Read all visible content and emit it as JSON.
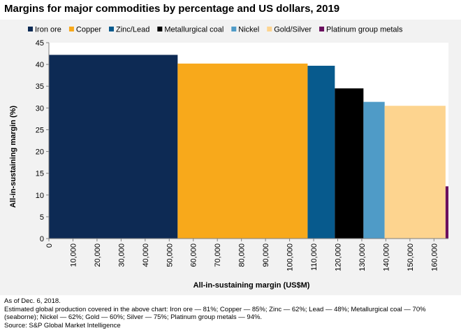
{
  "chart_data": {
    "type": "bar",
    "title": "Margins for major commodities by percentage and US dollars, 2019",
    "xlabel": "All-in-sustaining margin (US$M)",
    "ylabel": "All-in-sustaining margin (%)",
    "xlim": [
      0,
      166000
    ],
    "ylim": [
      0,
      45
    ],
    "x_ticks": [
      "0",
      "10,000",
      "20,000",
      "30,000",
      "40,000",
      "50,000",
      "60,000",
      "70,000",
      "80,000",
      "90,000",
      "100,000",
      "110,000",
      "120,000",
      "130,000",
      "140,000",
      "150,000",
      "160,000"
    ],
    "y_ticks": [
      "0",
      "5",
      "10",
      "15",
      "20",
      "25",
      "30",
      "35",
      "40",
      "45"
    ],
    "legend_position": "top",
    "series": [
      {
        "name": "Iron ore",
        "color": "#0d2a54",
        "x_start": 0,
        "x_end": 53500,
        "value": 42.2
      },
      {
        "name": "Copper",
        "color": "#f8a91b",
        "x_start": 53500,
        "x_end": 107500,
        "value": 40.2
      },
      {
        "name": "Zinc/Lead",
        "color": "#075a8d",
        "x_start": 107500,
        "x_end": 118800,
        "value": 39.7
      },
      {
        "name": "Metallurgical coal",
        "color": "#000000",
        "x_start": 118800,
        "x_end": 130700,
        "value": 34.5
      },
      {
        "name": "Nickel",
        "color": "#4f9bc7",
        "x_start": 130700,
        "x_end": 139500,
        "value": 31.4
      },
      {
        "name": "Gold/Silver",
        "color": "#fdd48f",
        "x_start": 139500,
        "x_end": 164800,
        "value": 30.5
      },
      {
        "name": "Platinum group metals",
        "color": "#6a0f5e",
        "x_start": 164800,
        "x_end": 166000,
        "value": 12.0
      }
    ]
  },
  "footer": {
    "date_note": "As of Dec. 6, 2018.",
    "coverage_note": "Estimated global production covered in the above chart: Iron ore — 81%; Copper — 85%; Zinc — 62%; Lead — 48%; Metallurgical coal — 70% (seaborne); Nickel — 62%; Gold — 60%; Silver — 75%; Platinum group metals — 94%.",
    "source": "Source: S&P Global Market Intelligence"
  }
}
